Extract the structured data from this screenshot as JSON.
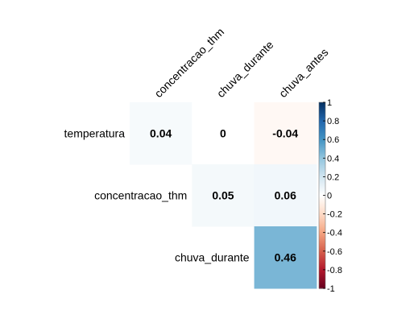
{
  "chart_data": {
    "type": "heatmap",
    "title": "",
    "rows": [
      "temperatura",
      "concentracao_thm",
      "chuva_durante"
    ],
    "columns": [
      "concentracao_thm",
      "chuva_durante",
      "chuva_antes"
    ],
    "cells": [
      {
        "row": 0,
        "col": 0,
        "value": 0.04,
        "label": "0.04"
      },
      {
        "row": 0,
        "col": 1,
        "value": 0,
        "label": "0"
      },
      {
        "row": 0,
        "col": 2,
        "value": -0.04,
        "label": "-0.04"
      },
      {
        "row": 1,
        "col": 1,
        "value": 0.05,
        "label": "0.05"
      },
      {
        "row": 1,
        "col": 2,
        "value": 0.06,
        "label": "0.06"
      },
      {
        "row": 2,
        "col": 2,
        "value": 0.46,
        "label": "0.46"
      }
    ],
    "colorbar": {
      "range": [
        -1,
        1
      ],
      "ticks": [
        1,
        0.8,
        0.6,
        0.4,
        0.2,
        0,
        -0.2,
        -0.4,
        -0.6,
        -0.8,
        -1
      ],
      "tick_labels": [
        "1",
        "0.8",
        "0.6",
        "0.4",
        "0.2",
        "0",
        "-0.2",
        "-0.4",
        "-0.6",
        "-0.8",
        "-1"
      ],
      "palette": [
        "#67001F",
        "#B2182B",
        "#D6604D",
        "#F4A582",
        "#FDDBC7",
        "#FFFFFF",
        "#D1E5F0",
        "#92C5DE",
        "#4393C3",
        "#2166AC",
        "#053061"
      ]
    },
    "legend_placement": "right",
    "grid": false
  }
}
